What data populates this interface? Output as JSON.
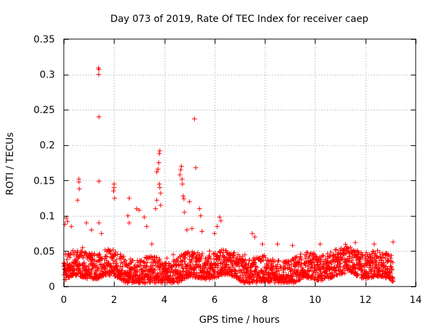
{
  "chart_data": {
    "type": "scatter",
    "title": "Day 073 of 2019, Rate Of TEC Index for receiver caep",
    "xlabel": "GPS time / hours",
    "ylabel": "ROTI / TECUs",
    "xlim": [
      0,
      14
    ],
    "ylim": [
      0,
      0.35
    ],
    "grid": true,
    "x_ticks": [
      0,
      2,
      4,
      6,
      8,
      10,
      12,
      14
    ],
    "x_tick_labels": [
      "0",
      "2",
      "4",
      "6",
      "8",
      "10",
      "12",
      "14"
    ],
    "y_ticks": [
      0,
      0.05,
      0.1,
      0.15,
      0.2,
      0.25,
      0.3,
      0.35
    ],
    "y_tick_labels": [
      "0",
      "0.05",
      "0.1",
      "0.15",
      "0.2",
      "0.25",
      "0.3",
      "0.35"
    ],
    "marker": "+",
    "marker_color": "#ff0000",
    "series": [
      {
        "name": "ROTI",
        "x_range": [
          0.0,
          13.1
        ],
        "baseline_band": [
          0.008,
          0.045
        ],
        "points": [
          [
            1.38,
            0.309
          ],
          [
            1.4,
            0.307
          ],
          [
            1.39,
            0.3
          ],
          [
            1.4,
            0.24
          ],
          [
            5.2,
            0.237
          ],
          [
            3.82,
            0.192
          ],
          [
            3.8,
            0.188
          ],
          [
            3.78,
            0.175
          ],
          [
            3.75,
            0.166
          ],
          [
            3.7,
            0.162
          ],
          [
            4.68,
            0.17
          ],
          [
            4.65,
            0.165
          ],
          [
            4.62,
            0.158
          ],
          [
            4.7,
            0.152
          ],
          [
            5.25,
            0.168
          ],
          [
            1.4,
            0.149
          ],
          [
            0.6,
            0.152
          ],
          [
            0.6,
            0.148
          ],
          [
            0.62,
            0.138
          ],
          [
            2.0,
            0.145
          ],
          [
            2.0,
            0.14
          ],
          [
            1.98,
            0.135
          ],
          [
            2.02,
            0.125
          ],
          [
            3.8,
            0.145
          ],
          [
            3.82,
            0.14
          ],
          [
            3.85,
            0.132
          ],
          [
            4.72,
            0.145
          ],
          [
            4.75,
            0.128
          ],
          [
            4.78,
            0.124
          ],
          [
            5.0,
            0.12
          ],
          [
            0.55,
            0.122
          ],
          [
            2.6,
            0.125
          ],
          [
            3.7,
            0.122
          ],
          [
            3.65,
            0.11
          ],
          [
            0.1,
            0.097
          ],
          [
            0.15,
            0.092
          ],
          [
            0.05,
            0.088
          ],
          [
            1.4,
            0.09
          ],
          [
            2.9,
            0.11
          ],
          [
            3.0,
            0.108
          ],
          [
            5.4,
            0.11
          ],
          [
            5.45,
            0.1
          ],
          [
            6.2,
            0.098
          ],
          [
            6.25,
            0.093
          ],
          [
            3.2,
            0.098
          ],
          [
            3.85,
            0.115
          ],
          [
            4.8,
            0.105
          ],
          [
            0.3,
            0.085
          ],
          [
            0.9,
            0.09
          ],
          [
            1.1,
            0.08
          ],
          [
            1.5,
            0.075
          ],
          [
            2.55,
            0.1
          ],
          [
            2.6,
            0.09
          ],
          [
            3.3,
            0.085
          ],
          [
            4.9,
            0.08
          ],
          [
            5.1,
            0.082
          ],
          [
            5.5,
            0.078
          ],
          [
            6.1,
            0.085
          ],
          [
            6.0,
            0.075
          ],
          [
            7.5,
            0.075
          ],
          [
            7.6,
            0.07
          ],
          [
            7.9,
            0.06
          ],
          [
            8.5,
            0.06
          ],
          [
            9.1,
            0.058
          ],
          [
            10.2,
            0.06
          ],
          [
            11.6,
            0.062
          ],
          [
            12.35,
            0.06
          ],
          [
            13.1,
            0.063
          ],
          [
            1.8,
            0.05
          ],
          [
            0.75,
            0.055
          ],
          [
            4.1,
            0.04
          ],
          [
            4.35,
            0.045
          ],
          [
            5.8,
            0.05
          ],
          [
            6.5,
            0.048
          ],
          [
            7.2,
            0.045
          ],
          [
            9.6,
            0.045
          ],
          [
            10.5,
            0.042
          ],
          [
            11.1,
            0.04
          ],
          [
            12.8,
            0.045
          ],
          [
            3.5,
            0.06
          ]
        ]
      }
    ]
  }
}
